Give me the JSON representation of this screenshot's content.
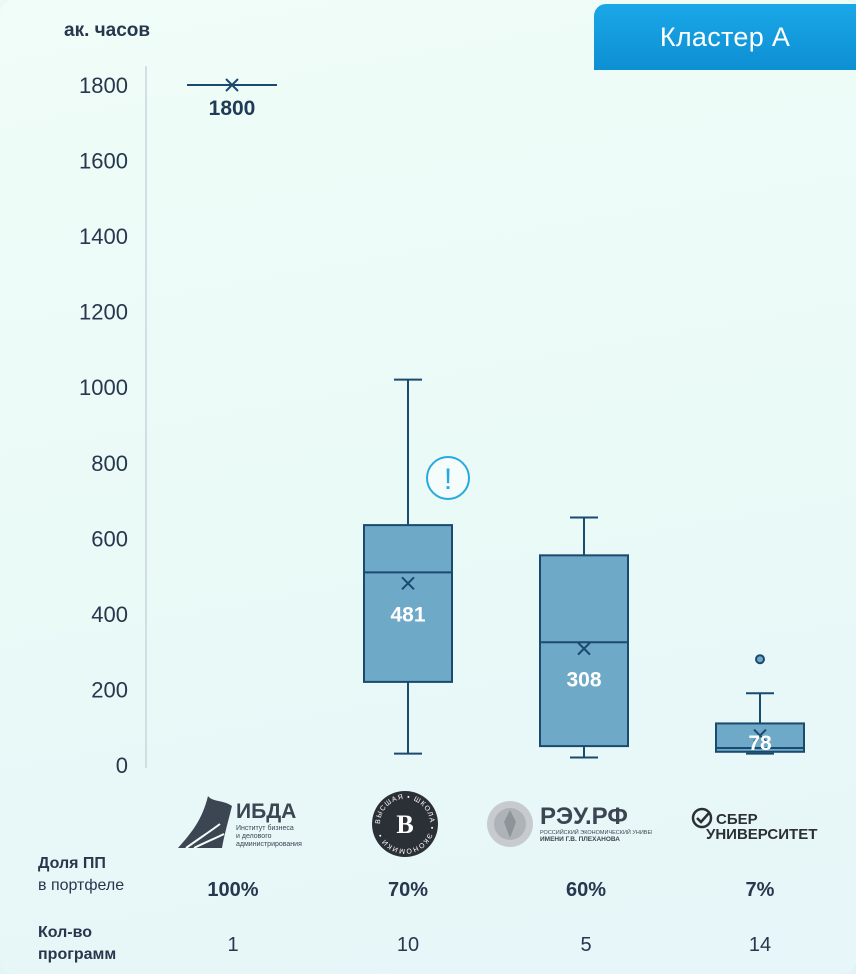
{
  "header": {
    "y_unit": "ак. часов",
    "cluster": "Кластер А"
  },
  "chart_data": {
    "type": "box",
    "ylim": [
      0,
      1800
    ],
    "yticks": [
      0,
      200,
      400,
      600,
      800,
      1000,
      1200,
      1400,
      1600,
      1800
    ],
    "grid": false,
    "boxes": [
      {
        "category": "ИБДА",
        "min": 1800,
        "q1": 1800,
        "median": 1800,
        "q3": 1800,
        "max": 1800,
        "mean": 1800,
        "mean_label": "1800",
        "outliers": [],
        "warning": false
      },
      {
        "category": "ВШЭ",
        "min": 30,
        "q1": 220,
        "median": 510,
        "q3": 635,
        "max": 1020,
        "mean": 481,
        "mean_label": "481",
        "outliers": [],
        "warning": true
      },
      {
        "category": "РЭУ.РФ",
        "min": 20,
        "q1": 50,
        "median": 325,
        "q3": 555,
        "max": 655,
        "mean": 308,
        "mean_label": "308",
        "outliers": [],
        "warning": false
      },
      {
        "category": "СБЕР УНИВЕРСИТЕТ",
        "min": 30,
        "q1": 35,
        "median": 45,
        "q3": 110,
        "max": 190,
        "mean": 78,
        "mean_label": "78",
        "outliers": [
          280
        ],
        "warning": false
      }
    ],
    "warning_glyph": "!"
  },
  "logos": [
    {
      "name": "ИБДА",
      "sub": [
        "Институт бизнеса",
        "и делового",
        "администрирования"
      ]
    },
    {
      "name": "ВШЭ",
      "ring_text": "ВЫСШАЯ • ШКОЛА • ЭКОНОМИКИ •",
      "letter": "В"
    },
    {
      "name": "РЭУ.РФ",
      "sub": [
        "РОССИЙСКИЙ ЭКОНОМИЧЕСКИЙ УНИВЕРСИТЕТ",
        "ИМЕНИ Г.В. ПЛЕХАНОВА"
      ]
    },
    {
      "name": "СБЕР",
      "sub": [
        "УНИВЕРСИТЕТ"
      ]
    }
  ],
  "share": {
    "label_bold": "Доля ПП",
    "label": "в портфеле",
    "values": [
      "100%",
      "70%",
      "60%",
      "7%"
    ]
  },
  "count": {
    "label_line1": "Кол-во",
    "label_line2": "программ",
    "values": [
      "1",
      "10",
      "5",
      "14"
    ]
  }
}
